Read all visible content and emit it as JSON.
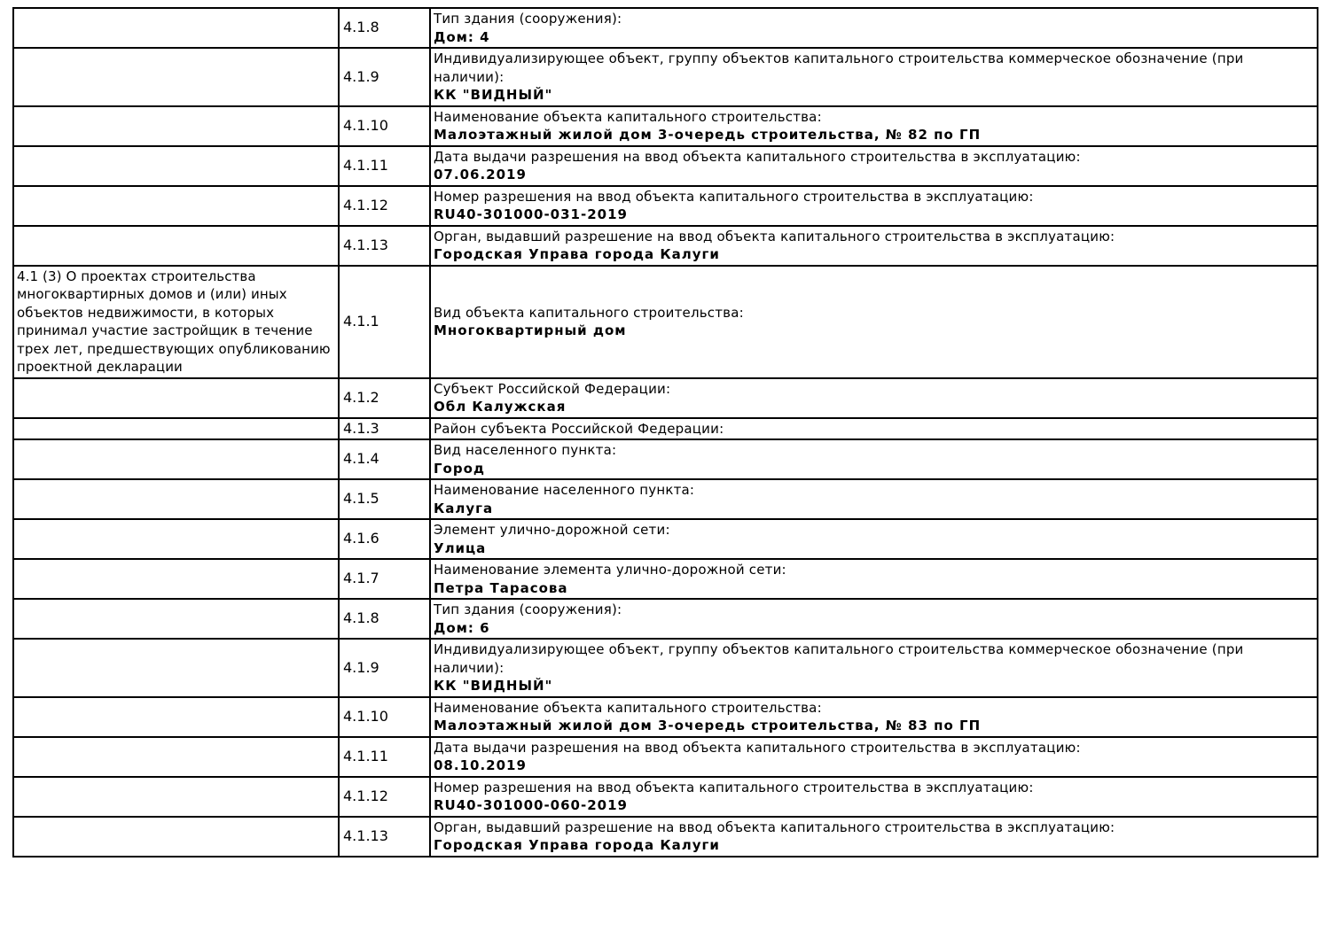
{
  "colors": {
    "background": "#ffffff",
    "border": "#000000",
    "text": "#000000"
  },
  "table": {
    "rows": [
      {
        "section": "",
        "num": "4.1.8",
        "label": "Тип здания (сооружения):",
        "value": "Дом: 4"
      },
      {
        "section": "",
        "num": "4.1.9",
        "label": "Индивидуализирующее объект, группу объектов капитального строительства коммерческое обозначение (при наличии):",
        "value": "КК \"ВИДНЫЙ\""
      },
      {
        "section": "",
        "num": "4.1.10",
        "label": "Наименование объекта капитального строительства:",
        "value": "Малоэтажный жилой дом 3-очередь строительства, № 82 по ГП"
      },
      {
        "section": "",
        "num": "4.1.11",
        "label": "Дата выдачи разрешения на ввод объекта капитального строительства в эксплуатацию:",
        "value": "07.06.2019"
      },
      {
        "section": "",
        "num": "4.1.12",
        "label": "Номер разрешения на ввод объекта капитального строительства в эксплуатацию:",
        "value": "RU40-301000-031-2019"
      },
      {
        "section": "",
        "num": "4.1.13",
        "label": "Орган, выдавший разрешение на ввод объекта капитального строительства в эксплуатацию:",
        "value": "Городская Управа города Калуги"
      },
      {
        "section": "4.1 (3) О проектах строительства многоквартирных домов и (или) иных объектов недвижимости, в которых принимал участие застройщик в течение трех лет, предшествующих опубликованию проектной декларации",
        "num": "4.1.1",
        "label": "Вид объекта капитального строительства:",
        "value": "Многоквартирный дом"
      },
      {
        "section": "",
        "num": "4.1.2",
        "label": "Субъект Российской Федерации:",
        "value": "Обл Калужская"
      },
      {
        "section": "",
        "num": "4.1.3",
        "label": "Район субъекта Российской Федерации:",
        "value": ""
      },
      {
        "section": "",
        "num": "4.1.4",
        "label": "Вид населенного пункта:",
        "value": "Город"
      },
      {
        "section": "",
        "num": "4.1.5",
        "label": "Наименование населенного пункта:",
        "value": "Калуга"
      },
      {
        "section": "",
        "num": "4.1.6",
        "label": "Элемент улично-дорожной сети:",
        "value": "Улица"
      },
      {
        "section": "",
        "num": "4.1.7",
        "label": "Наименование элемента улично-дорожной сети:",
        "value": "Петра Тарасова"
      },
      {
        "section": "",
        "num": "4.1.8",
        "label": "Тип здания (сооружения):",
        "value": "Дом: 6"
      },
      {
        "section": "",
        "num": "4.1.9",
        "label": "Индивидуализирующее объект, группу объектов капитального строительства коммерческое обозначение (при наличии):",
        "value": "КК \"ВИДНЫЙ\""
      },
      {
        "section": "",
        "num": "4.1.10",
        "label": "Наименование объекта капитального строительства:",
        "value": "Малоэтажный жилой дом 3-очередь строительства, № 83 по ГП"
      },
      {
        "section": "",
        "num": "4.1.11",
        "label": "Дата выдачи разрешения на ввод объекта капитального строительства в эксплуатацию:",
        "value": "08.10.2019"
      },
      {
        "section": "",
        "num": "4.1.12",
        "label": "Номер разрешения на ввод объекта капитального строительства в эксплуатацию:",
        "value": "RU40-301000-060-2019"
      },
      {
        "section": "",
        "num": "4.1.13",
        "label": "Орган, выдавший разрешение на ввод объекта капитального строительства в эксплуатацию:",
        "value": "Городская Управа города Калуги"
      }
    ]
  }
}
